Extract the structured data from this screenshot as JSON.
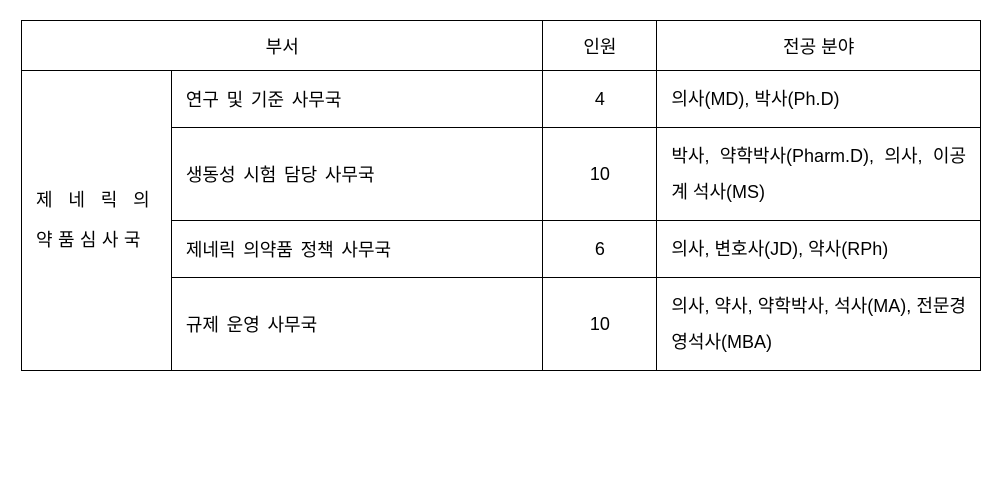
{
  "headers": {
    "dept": "부서",
    "count": "인원",
    "major": "전공 분야"
  },
  "category": "제 네 릭 의약품심사국",
  "rows": [
    {
      "dept": "연구 및 기준 사무국",
      "count": "4",
      "major": "의사(MD), 박사(Ph.D)"
    },
    {
      "dept": "생동성 시험 담당 사무국",
      "count": "10",
      "major": "박사, 약학박사(Pharm.D), 의사, 이공계 석사(MS)"
    },
    {
      "dept": "제네릭 의약품 정책 사무국",
      "count": "6",
      "major": "의사, 변호사(JD), 약사(RPh)"
    },
    {
      "dept": "규제 운영 사무국",
      "count": "10",
      "major": "의사, 약사, 약학박사, 석사(MA), 전문경영석사(MBA)"
    }
  ]
}
